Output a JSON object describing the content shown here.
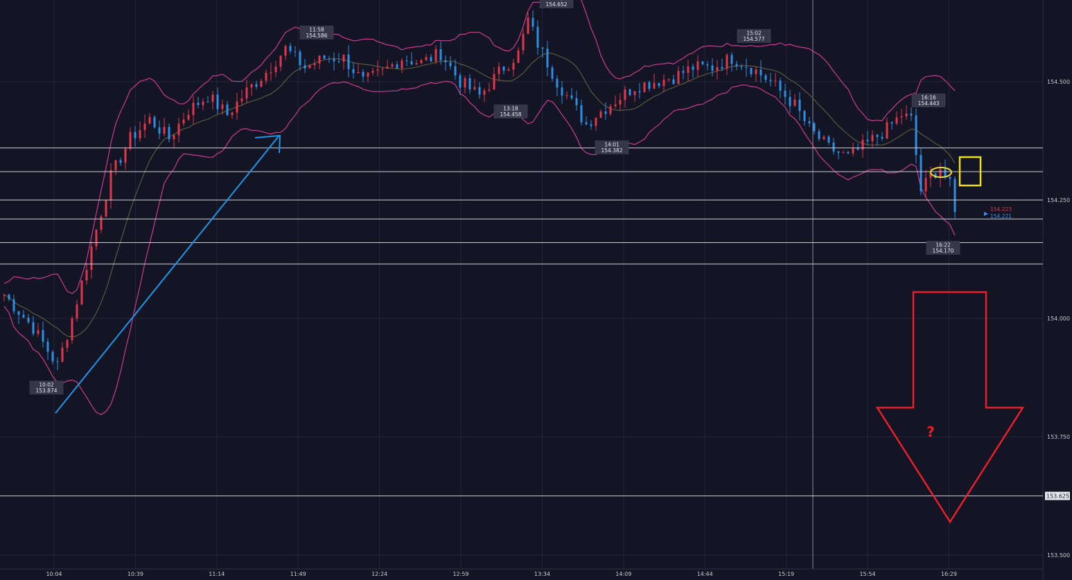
{
  "colors": {
    "background": "#131424",
    "grid": "#242638",
    "candle_up": "#e0384a",
    "candle_down": "#2f8fe6",
    "bollinger_band": "#d03b93",
    "bollinger_mid": "#5c5a3e",
    "level_line": "#d0d2da",
    "trend_arrow": "#1f96e8",
    "down_arrow": "#e8202a",
    "highlight": "#f0e020",
    "axis_text": "#c9cbd6",
    "price_tag_red": "#e0384a",
    "price_tag_blue": "#3c8ff0"
  },
  "chart_data": {
    "type": "candlestick",
    "x_axis": {
      "tick_labels": [
        "10:04",
        "10:39",
        "11:14",
        "11:49",
        "12:24",
        "12:59",
        "13:34",
        "14:09",
        "14:44",
        "15:19",
        "15:54",
        "16:29"
      ]
    },
    "y_axis": {
      "range": [
        153.48,
        154.66
      ],
      "tick_labels": [
        "154.500",
        "154.250",
        "154.000",
        "153.750",
        "153.500"
      ],
      "highlight_label": "153.625"
    },
    "price_annotations": [
      {
        "time": "10:02",
        "price": "153.874"
      },
      {
        "time": "11:58",
        "price": "154.586"
      },
      {
        "time": "",
        "price": "154.652"
      },
      {
        "time": "13:18",
        "price": "154.458"
      },
      {
        "time": "14:01",
        "price": "154.382"
      },
      {
        "time": "15:02",
        "price": "154.577"
      },
      {
        "time": "16:16",
        "price": "154.443"
      },
      {
        "time": "16:22",
        "price": "154.170"
      }
    ],
    "current_prices": {
      "ask": "154.223",
      "bid": "154.221"
    },
    "horizontal_levels": [
      154.36,
      154.31,
      154.25,
      154.21,
      154.16,
      154.115,
      153.625
    ],
    "indicators": [
      "Bollinger Bands"
    ],
    "price_path": [
      [
        0,
        154.05
      ],
      [
        6,
        153.98
      ],
      [
        11,
        153.9
      ],
      [
        14,
        154.0
      ],
      [
        18,
        154.15
      ],
      [
        22,
        154.3
      ],
      [
        26,
        154.38
      ],
      [
        30,
        154.42
      ],
      [
        34,
        154.38
      ],
      [
        38,
        154.44
      ],
      [
        42,
        154.47
      ],
      [
        46,
        154.43
      ],
      [
        50,
        154.48
      ],
      [
        54,
        154.52
      ],
      [
        58,
        154.57
      ],
      [
        62,
        154.53
      ],
      [
        66,
        154.55
      ],
      [
        70,
        154.55
      ],
      [
        74,
        154.5
      ],
      [
        78,
        154.52
      ],
      [
        82,
        154.55
      ],
      [
        86,
        154.54
      ],
      [
        90,
        154.56
      ],
      [
        94,
        154.5
      ],
      [
        98,
        154.47
      ],
      [
        102,
        154.52
      ],
      [
        106,
        154.56
      ],
      [
        108,
        154.63
      ],
      [
        110,
        154.58
      ],
      [
        114,
        154.5
      ],
      [
        118,
        154.44
      ],
      [
        120,
        154.41
      ],
      [
        122,
        154.43
      ],
      [
        126,
        154.46
      ],
      [
        130,
        154.49
      ],
      [
        134,
        154.5
      ],
      [
        138,
        154.51
      ],
      [
        142,
        154.53
      ],
      [
        146,
        154.53
      ],
      [
        150,
        154.55
      ],
      [
        154,
        154.53
      ],
      [
        158,
        154.5
      ],
      [
        160,
        154.48
      ],
      [
        163,
        154.45
      ],
      [
        166,
        154.4
      ],
      [
        170,
        154.36
      ],
      [
        174,
        154.34
      ],
      [
        178,
        154.37
      ],
      [
        182,
        154.4
      ],
      [
        185,
        154.43
      ],
      [
        187,
        154.42
      ],
      [
        189,
        154.27
      ],
      [
        191,
        154.3
      ],
      [
        193,
        154.32
      ],
      [
        195,
        154.28
      ],
      [
        196,
        154.22
      ]
    ],
    "arrows": [
      {
        "kind": "trend-up",
        "from": [
          10,
          153.8
        ],
        "to": [
          54,
          154.38
        ]
      },
      {
        "kind": "down",
        "note": "?"
      }
    ]
  },
  "down_arrow_label": "?"
}
